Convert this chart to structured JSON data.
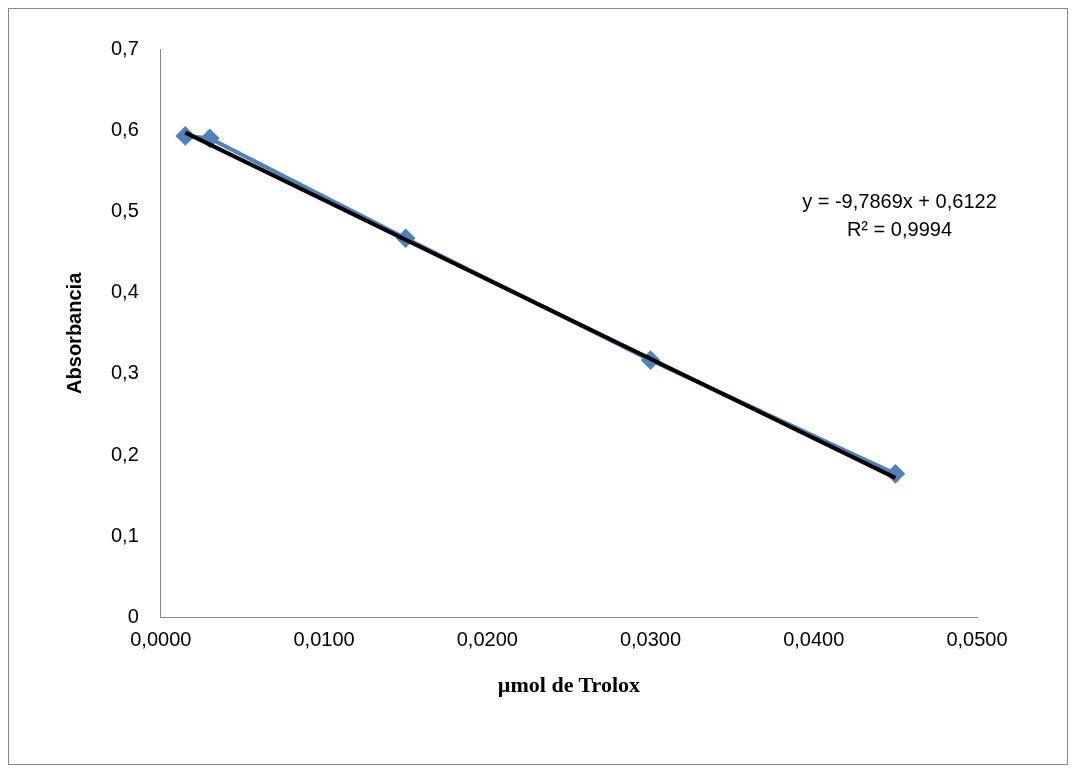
{
  "chart_data": {
    "type": "scatter",
    "xlabel": "µmol de Trolox",
    "ylabel": "Absorbancia",
    "xlim": [
      0,
      0.05
    ],
    "ylim": [
      0,
      0.7
    ],
    "xticks": [
      {
        "value": 0,
        "label": "0,0000"
      },
      {
        "value": 0.01,
        "label": "0,0100"
      },
      {
        "value": 0.02,
        "label": "0,0200"
      },
      {
        "value": 0.03,
        "label": "0,0300"
      },
      {
        "value": 0.04,
        "label": "0,0400"
      },
      {
        "value": 0.05,
        "label": "0,0500"
      }
    ],
    "yticks": [
      0,
      {
        "value": 0.1,
        "label": "0,1"
      },
      {
        "value": 0.2,
        "label": "0,2"
      },
      {
        "value": 0.3,
        "label": "0,3"
      },
      {
        "value": 0.4,
        "label": "0,4"
      },
      {
        "value": 0.5,
        "label": "0,5"
      },
      {
        "value": 0.6,
        "label": "0,6"
      },
      {
        "value": 0.7,
        "label": "0,7"
      }
    ],
    "grid": false,
    "legend": false,
    "series": [
      {
        "type": "line",
        "color": "#4f81bd",
        "marker": "diamond",
        "x": [
          0.0015,
          0.003,
          0.015,
          0.03,
          0.045
        ],
        "values": [
          0.593,
          0.59,
          0.467,
          0.317,
          0.177
        ]
      },
      {
        "type": "line",
        "color": "#000000",
        "marker": "none",
        "x": [
          0.0015,
          0.045
        ],
        "values": [
          0.597,
          0.172
        ]
      }
    ],
    "annotations": [
      "y = -9,7869x + 0,6122",
      "R² = 0,9994"
    ]
  }
}
